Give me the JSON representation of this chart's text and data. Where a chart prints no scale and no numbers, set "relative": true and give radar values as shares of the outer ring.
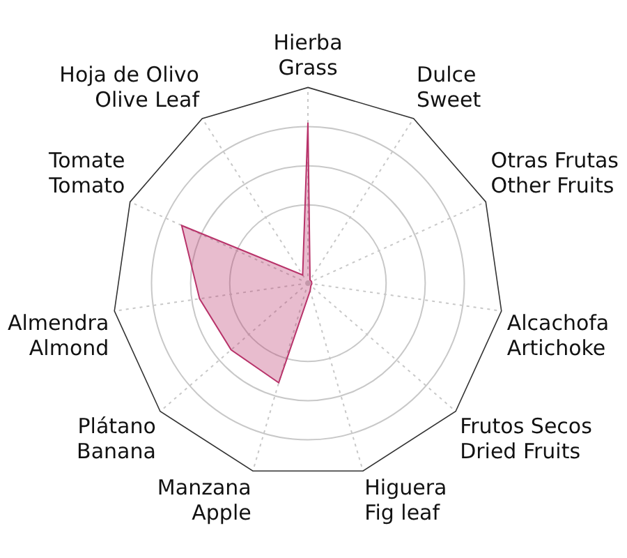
{
  "chart_data": {
    "type": "radar",
    "relative": true,
    "categories": [
      "Hierba\nGrass",
      "Dulce\nSweet",
      "Otras Frutas\nOther Fruits",
      "Alcachofa\nArtichoke",
      "Frutos Secos\nDried Fruits",
      "Higuera\nFig leaf",
      "Manzana\nApple",
      "Plátano\nBanana",
      "Almendra\nAlmond",
      "Tomate\nTomato",
      "Hoja de Olivo\nOlive Leaf"
    ],
    "series": [
      {
        "color": "#b8336a",
        "values": [
          0.82,
          0.02,
          0.02,
          0.02,
          0.02,
          0.04,
          0.53,
          0.52,
          0.56,
          0.71,
          0.05
        ]
      }
    ],
    "grid": true,
    "legend": false,
    "marker": "none"
  }
}
